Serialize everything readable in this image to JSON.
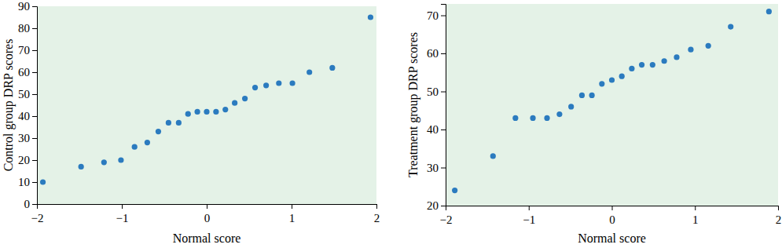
{
  "chart_data": [
    {
      "type": "scatter",
      "x_label": "Normal score",
      "y_label": "Control group DRP scores",
      "color": "#2b7bbf",
      "x": [
        -1.93,
        -1.48,
        -1.21,
        -1.01,
        -0.85,
        -0.7,
        -0.57,
        -0.45,
        -0.33,
        -0.22,
        -0.11,
        0,
        0.11,
        0.22,
        0.33,
        0.45,
        0.57,
        0.7,
        0.85,
        1.01,
        1.21,
        1.48,
        1.93
      ],
      "values": [
        10,
        17,
        19,
        20,
        26,
        28,
        33,
        37,
        37,
        41,
        42,
        42,
        42,
        43,
        46,
        48,
        53,
        54,
        55,
        55,
        60,
        62,
        85
      ],
      "xlim": [
        -2,
        2
      ],
      "xticks": [
        {
          "value": -2,
          "label": "−2"
        },
        {
          "value": -1,
          "label": "−1"
        },
        0,
        1,
        2
      ],
      "ylim": [
        0,
        90
      ],
      "yticks": [
        0,
        10,
        20,
        30,
        40,
        50,
        60,
        70,
        80,
        90
      ]
    },
    {
      "type": "scatter",
      "x_label": "Normal score",
      "y_label": "Treatment group DRP scores",
      "color": "#2b7bbf",
      "x": [
        -1.89,
        -1.43,
        -1.16,
        -0.95,
        -0.78,
        -0.63,
        -0.49,
        -0.36,
        -0.24,
        -0.12,
        0,
        0.12,
        0.24,
        0.36,
        0.49,
        0.63,
        0.78,
        0.95,
        1.16,
        1.43,
        1.89
      ],
      "values": [
        24,
        33,
        43,
        43,
        43,
        44,
        46,
        49,
        49,
        52,
        53,
        54,
        56,
        57,
        57,
        58,
        59,
        61,
        62,
        67,
        71
      ],
      "xlim": [
        -2,
        2
      ],
      "xticks": [
        {
          "value": -2,
          "label": "−2"
        },
        {
          "value": -1,
          "label": "−1"
        },
        0,
        1,
        2
      ],
      "ylim": [
        20,
        73
      ],
      "yticks": [
        20,
        30,
        40,
        50,
        60,
        70
      ]
    }
  ]
}
